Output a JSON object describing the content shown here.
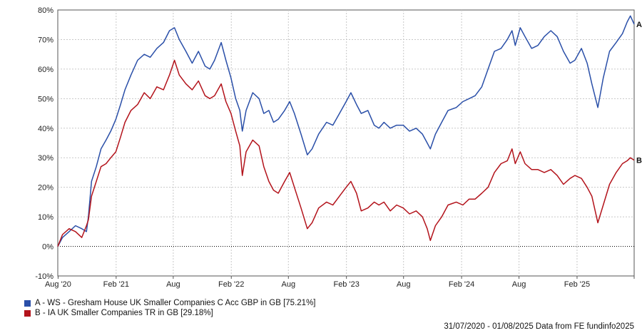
{
  "chart_data": {
    "type": "line",
    "title": "",
    "xlabel": "",
    "ylabel": "",
    "ylim": [
      -10,
      80
    ],
    "y_ticks": [
      -10,
      0,
      10,
      20,
      30,
      40,
      50,
      60,
      70,
      80
    ],
    "y_tick_labels": [
      "-10%",
      "0%",
      "10%",
      "20%",
      "30%",
      "40%",
      "50%",
      "60%",
      "70%",
      "80%"
    ],
    "x_range": [
      "2020-07-31",
      "2025-08-01"
    ],
    "x_ticks": [
      {
        "date": "2020-08-01",
        "label": "Aug '20"
      },
      {
        "date": "2021-02-01",
        "label": "Feb '21"
      },
      {
        "date": "2021-08-01",
        "label": "Aug"
      },
      {
        "date": "2022-02-01",
        "label": "Feb '22"
      },
      {
        "date": "2022-08-01",
        "label": "Aug"
      },
      {
        "date": "2023-02-01",
        "label": "Feb '23"
      },
      {
        "date": "2023-08-01",
        "label": "Aug"
      },
      {
        "date": "2024-02-01",
        "label": "Feb '24"
      },
      {
        "date": "2024-08-01",
        "label": "Aug"
      },
      {
        "date": "2025-02-01",
        "label": "Feb '25"
      },
      {
        "date": "2025-08-01",
        "label": ""
      }
    ],
    "grid": true,
    "zero_line": "dotted",
    "legend_position": "bottom-left",
    "series": [
      {
        "name": "A - WS - Gresham House UK Smaller Companies C Acc GBP in GB [75.21%]",
        "end_label": "A",
        "color": "#2a4fa8",
        "points": [
          [
            "2020-07-31",
            0
          ],
          [
            "2020-08-15",
            3
          ],
          [
            "2020-09-05",
            5
          ],
          [
            "2020-09-25",
            7
          ],
          [
            "2020-10-15",
            6
          ],
          [
            "2020-10-30",
            5
          ],
          [
            "2020-11-05",
            10
          ],
          [
            "2020-11-15",
            22
          ],
          [
            "2020-11-30",
            27
          ],
          [
            "2020-12-15",
            33
          ],
          [
            "2020-12-31",
            36
          ],
          [
            "2021-01-15",
            39
          ],
          [
            "2021-01-31",
            43
          ],
          [
            "2021-02-15",
            48
          ],
          [
            "2021-03-01",
            53
          ],
          [
            "2021-03-20",
            58
          ],
          [
            "2021-04-10",
            63
          ],
          [
            "2021-05-01",
            65
          ],
          [
            "2021-05-20",
            64
          ],
          [
            "2021-06-10",
            67
          ],
          [
            "2021-07-01",
            69
          ],
          [
            "2021-07-20",
            73
          ],
          [
            "2021-08-05",
            74
          ],
          [
            "2021-08-20",
            70
          ],
          [
            "2021-09-10",
            66
          ],
          [
            "2021-09-30",
            62
          ],
          [
            "2021-10-20",
            66
          ],
          [
            "2021-11-10",
            61
          ],
          [
            "2021-11-25",
            60
          ],
          [
            "2021-12-10",
            63
          ],
          [
            "2021-12-31",
            69
          ],
          [
            "2022-01-15",
            63
          ],
          [
            "2022-01-31",
            57
          ],
          [
            "2022-02-15",
            50
          ],
          [
            "2022-02-28",
            46
          ],
          [
            "2022-03-08",
            39
          ],
          [
            "2022-03-20",
            46
          ],
          [
            "2022-04-10",
            52
          ],
          [
            "2022-04-30",
            50
          ],
          [
            "2022-05-15",
            45
          ],
          [
            "2022-05-31",
            46
          ],
          [
            "2022-06-15",
            42
          ],
          [
            "2022-06-30",
            43
          ],
          [
            "2022-07-20",
            46
          ],
          [
            "2022-08-05",
            49
          ],
          [
            "2022-08-20",
            45
          ],
          [
            "2022-09-10",
            38
          ],
          [
            "2022-09-30",
            31
          ],
          [
            "2022-10-15",
            33
          ],
          [
            "2022-11-05",
            38
          ],
          [
            "2022-11-30",
            42
          ],
          [
            "2022-12-20",
            41
          ],
          [
            "2023-01-10",
            45
          ],
          [
            "2023-01-31",
            49
          ],
          [
            "2023-02-15",
            52
          ],
          [
            "2023-03-05",
            48
          ],
          [
            "2023-03-20",
            45
          ],
          [
            "2023-04-10",
            46
          ],
          [
            "2023-04-30",
            41
          ],
          [
            "2023-05-15",
            40
          ],
          [
            "2023-05-31",
            42
          ],
          [
            "2023-06-20",
            40
          ],
          [
            "2023-07-10",
            41
          ],
          [
            "2023-07-31",
            41
          ],
          [
            "2023-08-20",
            39
          ],
          [
            "2023-09-10",
            40
          ],
          [
            "2023-09-30",
            38
          ],
          [
            "2023-10-15",
            35
          ],
          [
            "2023-10-25",
            33
          ],
          [
            "2023-11-10",
            38
          ],
          [
            "2023-11-30",
            42
          ],
          [
            "2023-12-20",
            46
          ],
          [
            "2024-01-15",
            47
          ],
          [
            "2024-02-05",
            49
          ],
          [
            "2024-02-25",
            50
          ],
          [
            "2024-03-15",
            51
          ],
          [
            "2024-04-05",
            54
          ],
          [
            "2024-04-25",
            60
          ],
          [
            "2024-05-15",
            66
          ],
          [
            "2024-06-05",
            67
          ],
          [
            "2024-06-25",
            70
          ],
          [
            "2024-07-10",
            73
          ],
          [
            "2024-07-20",
            68
          ],
          [
            "2024-08-05",
            74
          ],
          [
            "2024-08-20",
            71
          ],
          [
            "2024-09-10",
            67
          ],
          [
            "2024-09-30",
            68
          ],
          [
            "2024-10-20",
            71
          ],
          [
            "2024-11-10",
            73
          ],
          [
            "2024-11-30",
            71
          ],
          [
            "2024-12-20",
            66
          ],
          [
            "2025-01-10",
            62
          ],
          [
            "2025-01-25",
            63
          ],
          [
            "2025-02-15",
            67
          ],
          [
            "2025-03-05",
            62
          ],
          [
            "2025-03-20",
            55
          ],
          [
            "2025-04-08",
            47
          ],
          [
            "2025-04-25",
            57
          ],
          [
            "2025-05-15",
            66
          ],
          [
            "2025-06-05",
            69
          ],
          [
            "2025-06-25",
            72
          ],
          [
            "2025-07-10",
            76
          ],
          [
            "2025-07-20",
            78
          ],
          [
            "2025-08-01",
            75.21
          ]
        ]
      },
      {
        "name": "B - IA UK Smaller Companies TR in GB [29.18%]",
        "end_label": "B",
        "color": "#b3131b",
        "points": [
          [
            "2020-07-31",
            0
          ],
          [
            "2020-08-15",
            4
          ],
          [
            "2020-09-05",
            6
          ],
          [
            "2020-09-25",
            5
          ],
          [
            "2020-10-15",
            3
          ],
          [
            "2020-10-30",
            7
          ],
          [
            "2020-11-05",
            9
          ],
          [
            "2020-11-15",
            17
          ],
          [
            "2020-11-30",
            22
          ],
          [
            "2020-12-15",
            27
          ],
          [
            "2020-12-31",
            28
          ],
          [
            "2021-01-15",
            30
          ],
          [
            "2021-01-31",
            32
          ],
          [
            "2021-02-15",
            37
          ],
          [
            "2021-03-01",
            42
          ],
          [
            "2021-03-20",
            46
          ],
          [
            "2021-04-10",
            48
          ],
          [
            "2021-05-01",
            52
          ],
          [
            "2021-05-20",
            50
          ],
          [
            "2021-06-10",
            54
          ],
          [
            "2021-07-01",
            53
          ],
          [
            "2021-07-20",
            58
          ],
          [
            "2021-08-05",
            63
          ],
          [
            "2021-08-20",
            58
          ],
          [
            "2021-09-10",
            55
          ],
          [
            "2021-09-30",
            53
          ],
          [
            "2021-10-20",
            56
          ],
          [
            "2021-11-10",
            51
          ],
          [
            "2021-11-25",
            50
          ],
          [
            "2021-12-10",
            51
          ],
          [
            "2021-12-31",
            55
          ],
          [
            "2022-01-15",
            49
          ],
          [
            "2022-01-31",
            45
          ],
          [
            "2022-02-15",
            39
          ],
          [
            "2022-02-28",
            34
          ],
          [
            "2022-03-08",
            24
          ],
          [
            "2022-03-20",
            32
          ],
          [
            "2022-04-10",
            36
          ],
          [
            "2022-04-30",
            34
          ],
          [
            "2022-05-15",
            27
          ],
          [
            "2022-05-31",
            22
          ],
          [
            "2022-06-15",
            19
          ],
          [
            "2022-06-30",
            18
          ],
          [
            "2022-07-20",
            22
          ],
          [
            "2022-08-05",
            25
          ],
          [
            "2022-08-20",
            20
          ],
          [
            "2022-09-10",
            13
          ],
          [
            "2022-09-30",
            6
          ],
          [
            "2022-10-15",
            8
          ],
          [
            "2022-11-05",
            13
          ],
          [
            "2022-11-30",
            15
          ],
          [
            "2022-12-20",
            14
          ],
          [
            "2023-01-10",
            17
          ],
          [
            "2023-01-31",
            20
          ],
          [
            "2023-02-15",
            22
          ],
          [
            "2023-03-05",
            18
          ],
          [
            "2023-03-20",
            12
          ],
          [
            "2023-04-10",
            13
          ],
          [
            "2023-04-30",
            15
          ],
          [
            "2023-05-15",
            14
          ],
          [
            "2023-05-31",
            15
          ],
          [
            "2023-06-20",
            12
          ],
          [
            "2023-07-10",
            14
          ],
          [
            "2023-07-31",
            13
          ],
          [
            "2023-08-20",
            11
          ],
          [
            "2023-09-10",
            12
          ],
          [
            "2023-09-30",
            10
          ],
          [
            "2023-10-15",
            6
          ],
          [
            "2023-10-25",
            2
          ],
          [
            "2023-11-10",
            7
          ],
          [
            "2023-11-30",
            10
          ],
          [
            "2023-12-20",
            14
          ],
          [
            "2024-01-15",
            15
          ],
          [
            "2024-02-05",
            14
          ],
          [
            "2024-02-25",
            16
          ],
          [
            "2024-03-15",
            16
          ],
          [
            "2024-04-05",
            18
          ],
          [
            "2024-04-25",
            20
          ],
          [
            "2024-05-15",
            25
          ],
          [
            "2024-06-05",
            28
          ],
          [
            "2024-06-25",
            29
          ],
          [
            "2024-07-10",
            33
          ],
          [
            "2024-07-20",
            28
          ],
          [
            "2024-08-05",
            32
          ],
          [
            "2024-08-20",
            28
          ],
          [
            "2024-09-10",
            26
          ],
          [
            "2024-09-30",
            26
          ],
          [
            "2024-10-20",
            25
          ],
          [
            "2024-11-10",
            26
          ],
          [
            "2024-11-30",
            24
          ],
          [
            "2024-12-20",
            21
          ],
          [
            "2025-01-10",
            23
          ],
          [
            "2025-01-25",
            24
          ],
          [
            "2025-02-15",
            23
          ],
          [
            "2025-03-05",
            20
          ],
          [
            "2025-03-20",
            17
          ],
          [
            "2025-04-08",
            8
          ],
          [
            "2025-04-25",
            14
          ],
          [
            "2025-05-15",
            21
          ],
          [
            "2025-06-05",
            25
          ],
          [
            "2025-06-25",
            28
          ],
          [
            "2025-07-10",
            29
          ],
          [
            "2025-07-20",
            30
          ],
          [
            "2025-08-01",
            29.18
          ]
        ]
      }
    ]
  },
  "footer": {
    "text": "31/07/2020 - 01/08/2025 Data from FE fundinfo2025"
  }
}
